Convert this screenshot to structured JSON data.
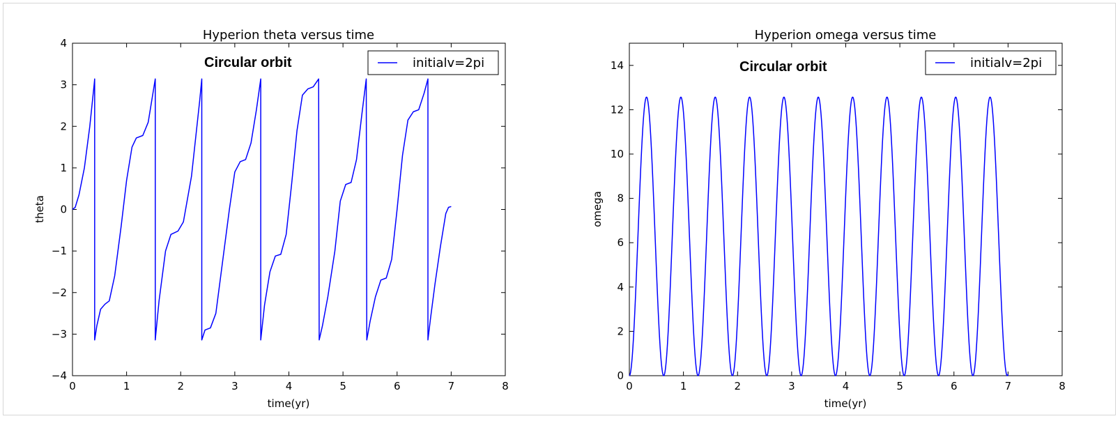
{
  "chart_data": [
    {
      "type": "line",
      "title": "Hyperion theta versus time",
      "xlabel": "time(yr)",
      "ylabel": "theta",
      "xlim": [
        0,
        8
      ],
      "ylim": [
        -4,
        4
      ],
      "xticks": [
        "0",
        "1",
        "2",
        "3",
        "4",
        "5",
        "6",
        "7",
        "8"
      ],
      "yticks": [
        "−4",
        "−3",
        "−2",
        "−1",
        "0",
        "1",
        "2",
        "3",
        "4"
      ],
      "annotation": "Circular orbit",
      "legend_position": "upper right",
      "grid": false,
      "series": [
        {
          "name": "initialv=2pi",
          "color": "#0000ff",
          "points": [
            [
              0,
              0
            ],
            [
              0.05,
              0.05
            ],
            [
              0.12,
              0.35
            ],
            [
              0.22,
              1.0
            ],
            [
              0.32,
              2.0
            ],
            [
              0.4,
              3.0
            ],
            [
              0.41,
              3.14
            ],
            [
              0.41,
              -3.14
            ],
            [
              0.45,
              -2.8
            ],
            [
              0.52,
              -2.4
            ],
            [
              0.6,
              -2.28
            ],
            [
              0.68,
              -2.2
            ],
            [
              0.78,
              -1.6
            ],
            [
              0.9,
              -0.4
            ],
            [
              1.0,
              0.7
            ],
            [
              1.1,
              1.5
            ],
            [
              1.18,
              1.72
            ],
            [
              1.3,
              1.78
            ],
            [
              1.4,
              2.1
            ],
            [
              1.5,
              2.9
            ],
            [
              1.53,
              3.14
            ],
            [
              1.53,
              -3.14
            ],
            [
              1.6,
              -2.2
            ],
            [
              1.72,
              -1.0
            ],
            [
              1.82,
              -0.6
            ],
            [
              1.95,
              -0.52
            ],
            [
              2.05,
              -0.3
            ],
            [
              2.2,
              0.8
            ],
            [
              2.35,
              2.6
            ],
            [
              2.39,
              3.14
            ],
            [
              2.39,
              -3.14
            ],
            [
              2.45,
              -2.9
            ],
            [
              2.55,
              -2.85
            ],
            [
              2.65,
              -2.5
            ],
            [
              2.8,
              -1.0
            ],
            [
              2.9,
              0.0
            ],
            [
              3.0,
              0.9
            ],
            [
              3.1,
              1.15
            ],
            [
              3.2,
              1.2
            ],
            [
              3.3,
              1.6
            ],
            [
              3.4,
              2.4
            ],
            [
              3.48,
              3.14
            ],
            [
              3.48,
              -3.14
            ],
            [
              3.55,
              -2.3
            ],
            [
              3.65,
              -1.5
            ],
            [
              3.75,
              -1.12
            ],
            [
              3.85,
              -1.08
            ],
            [
              3.95,
              -0.6
            ],
            [
              4.05,
              0.6
            ],
            [
              4.15,
              1.9
            ],
            [
              4.25,
              2.75
            ],
            [
              4.35,
              2.9
            ],
            [
              4.45,
              2.95
            ],
            [
              4.55,
              3.14
            ],
            [
              4.56,
              -3.14
            ],
            [
              4.62,
              -2.8
            ],
            [
              4.72,
              -2.1
            ],
            [
              4.85,
              -1.0
            ],
            [
              4.95,
              0.2
            ],
            [
              5.05,
              0.6
            ],
            [
              5.15,
              0.65
            ],
            [
              5.25,
              1.2
            ],
            [
              5.35,
              2.3
            ],
            [
              5.43,
              3.14
            ],
            [
              5.44,
              -3.14
            ],
            [
              5.5,
              -2.7
            ],
            [
              5.6,
              -2.1
            ],
            [
              5.7,
              -1.7
            ],
            [
              5.8,
              -1.65
            ],
            [
              5.9,
              -1.2
            ],
            [
              6.0,
              0.0
            ],
            [
              6.1,
              1.3
            ],
            [
              6.2,
              2.15
            ],
            [
              6.3,
              2.35
            ],
            [
              6.4,
              2.4
            ],
            [
              6.5,
              2.8
            ],
            [
              6.57,
              3.14
            ],
            [
              6.57,
              -3.14
            ],
            [
              6.62,
              -2.6
            ],
            [
              6.7,
              -1.8
            ],
            [
              6.8,
              -0.9
            ],
            [
              6.9,
              -0.1
            ],
            [
              6.95,
              0.05
            ],
            [
              7.0,
              0.07
            ]
          ]
        }
      ]
    },
    {
      "type": "line",
      "title": "Hyperion omega versus time",
      "xlabel": "time(yr)",
      "ylabel": "omega",
      "xlim": [
        0,
        8
      ],
      "ylim": [
        0,
        15
      ],
      "xticks": [
        "0",
        "1",
        "2",
        "3",
        "4",
        "5",
        "6",
        "7",
        "8"
      ],
      "yticks": [
        "0",
        "2",
        "4",
        "6",
        "8",
        "10",
        "12",
        "14"
      ],
      "annotation": "Circular orbit",
      "legend_position": "upper right",
      "grid": false,
      "series": [
        {
          "name": "initialv=2pi",
          "color": "#0000ff",
          "formula": "omega = 6.28 * (1 - cos(2*pi*t/0.635)), t in [0, 7]",
          "amplitude": 12.57,
          "period": 0.635,
          "t_end": 7.0
        }
      ]
    }
  ]
}
